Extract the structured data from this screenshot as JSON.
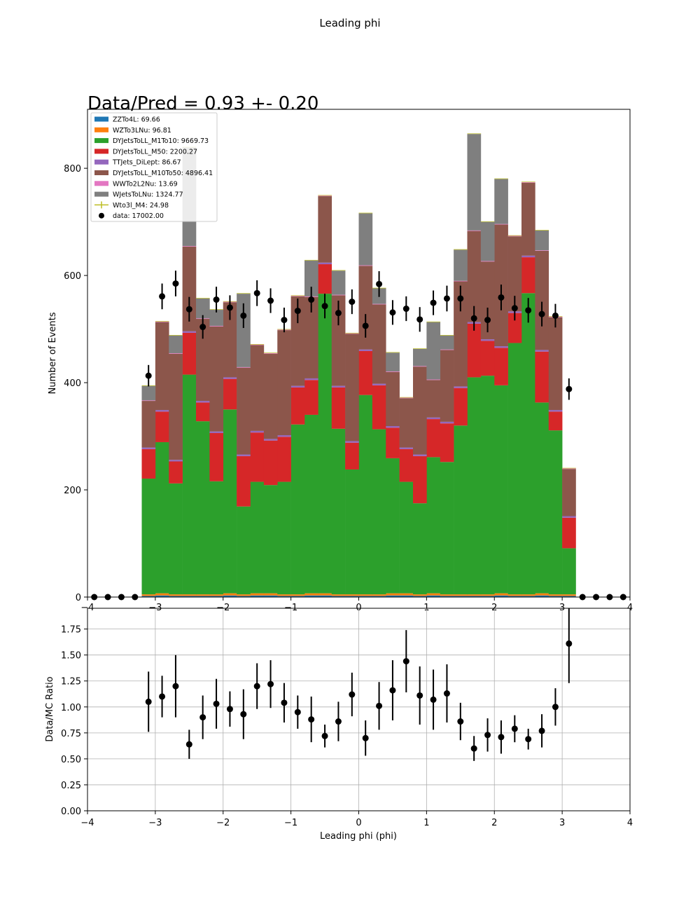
{
  "figure_title": "Leading phi",
  "annotation": "Data/Pred = 0.93 +- 0.20",
  "colors": {
    "ZZTo4L": "#1f77b4",
    "WZTo3LNu": "#ff7f0e",
    "DYJetsToLL_M1To10": "#2ca02c",
    "DYJetsToLL_M50": "#d62728",
    "TTJets_DiLept": "#9467bd",
    "DYJetsToLL_M10To50": "#8c564b",
    "WWTo2L2Nu": "#e377c2",
    "WJetsToLNu": "#7f7f7f",
    "Wto3l_M4": "#bcbd22",
    "data": "#000000"
  },
  "chart_data": [
    {
      "type": "bar",
      "stacked": true,
      "ylabel": "Number of Events",
      "xlim": [
        -4,
        4
      ],
      "ylim": [
        0,
        910
      ],
      "xticks": [
        "−4",
        "−3",
        "−2",
        "−1",
        "0",
        "1",
        "2",
        "3",
        "4"
      ],
      "yticks": [
        "0",
        "200",
        "400",
        "600",
        "800"
      ],
      "legend_position": "top-left",
      "legend": [
        "ZZTo4L: 69.66",
        "WZTo3LNu: 96.81",
        "DYJetsToLL_M1To10: 9669.73",
        "DYJetsToLL_M50: 2200.27",
        "TTJets_DiLept: 86.67",
        "DYJetsToLL_M10To50: 4896.41",
        "WWTo2L2Nu: 13.69",
        "WJetsToLNu: 1324.77",
        "Wto3l_M4: 24.98",
        "data: 17002.00"
      ],
      "bin_edges": [
        -4.0,
        -3.8,
        -3.6,
        -3.4,
        -3.2,
        -3.0,
        -2.8,
        -2.6,
        -2.4,
        -2.2,
        -2.0,
        -1.8,
        -1.6,
        -1.4,
        -1.2,
        -1.0,
        -0.8,
        -0.6,
        -0.4,
        -0.2,
        0.0,
        0.2,
        0.4,
        0.6,
        0.8,
        1.0,
        1.2,
        1.4,
        1.6,
        1.8,
        2.0,
        2.2,
        2.4,
        2.6,
        2.8,
        3.0,
        3.2,
        3.4,
        3.6,
        3.8,
        4.0
      ],
      "series": [
        {
          "key": "ZZTo4L",
          "values": [
            0,
            0,
            0,
            0,
            2,
            3,
            2,
            2,
            2,
            2,
            3,
            2,
            3,
            3,
            2,
            2,
            3,
            3,
            2,
            2,
            2,
            2,
            3,
            3,
            2,
            3,
            2,
            2,
            2,
            2,
            3,
            2,
            2,
            3,
            2,
            2,
            0,
            0,
            0,
            0
          ]
        },
        {
          "key": "WZTo3LNu",
          "values": [
            0,
            0,
            0,
            0,
            3,
            4,
            3,
            3,
            3,
            3,
            4,
            3,
            4,
            4,
            3,
            3,
            4,
            4,
            3,
            3,
            3,
            3,
            4,
            4,
            3,
            4,
            3,
            3,
            3,
            3,
            4,
            3,
            3,
            4,
            3,
            3,
            0,
            0,
            0,
            0
          ]
        },
        {
          "key": "DYJetsToLL_M1To10",
          "values": [
            0,
            0,
            0,
            0,
            216,
            282,
            207,
            410,
            323,
            211,
            343,
            164,
            208,
            202,
            210,
            317,
            333,
            559,
            309,
            233,
            372,
            308,
            252,
            208,
            170,
            254,
            247,
            315,
            405,
            408,
            388,
            469,
            562,
            356,
            306,
            86,
            0,
            0,
            0,
            0
          ]
        },
        {
          "key": "DYJetsToLL_M50",
          "values": [
            0,
            0,
            0,
            0,
            55,
            57,
            41,
            78,
            35,
            90,
            57,
            94,
            92,
            83,
            84,
            69,
            65,
            55,
            77,
            50,
            82,
            82,
            57,
            61,
            88,
            71,
            72,
            70,
            100,
            65,
            70,
            56,
            67,
            95,
            35,
            57,
            0,
            0,
            0,
            0
          ]
        },
        {
          "key": "TTJets_DiLept",
          "values": [
            0,
            0,
            0,
            0,
            3,
            3,
            3,
            3,
            3,
            3,
            3,
            3,
            3,
            3,
            3,
            3,
            3,
            3,
            3,
            3,
            3,
            3,
            3,
            3,
            3,
            3,
            3,
            3,
            3,
            3,
            3,
            3,
            3,
            3,
            3,
            3,
            0,
            0,
            0,
            0
          ]
        },
        {
          "key": "DYJetsToLL_M10To50",
          "values": [
            0,
            0,
            0,
            0,
            87,
            164,
            198,
            158,
            153,
            196,
            140,
            162,
            160,
            159,
            196,
            167,
            152,
            124,
            169,
            200,
            156,
            148,
            101,
            92,
            164,
            70,
            134,
            196,
            170,
            145,
            227,
            140,
            136,
            185,
            173,
            88,
            0,
            0,
            0,
            0
          ]
        },
        {
          "key": "WWTo2L2Nu",
          "values": [
            0,
            0,
            0,
            0,
            1,
            1,
            1,
            1,
            1,
            1,
            1,
            1,
            1,
            1,
            1,
            1,
            1,
            1,
            1,
            1,
            1,
            1,
            1,
            1,
            1,
            1,
            1,
            1,
            1,
            1,
            1,
            1,
            1,
            1,
            1,
            1,
            0,
            0,
            0,
            0
          ]
        },
        {
          "key": "WJetsToLNu",
          "values": [
            0,
            0,
            0,
            0,
            27,
            0,
            33,
            184,
            37,
            30,
            0,
            137,
            0,
            0,
            0,
            0,
            67,
            0,
            45,
            0,
            97,
            29,
            35,
            0,
            32,
            107,
            26,
            58,
            180,
            73,
            84,
            0,
            0,
            37,
            0,
            0,
            0,
            0,
            0,
            0
          ]
        },
        {
          "key": "Wto3l_M4",
          "values": [
            0,
            0,
            0,
            0,
            1,
            1,
            1,
            1,
            1,
            1,
            1,
            1,
            1,
            1,
            1,
            1,
            1,
            1,
            1,
            1,
            1,
            1,
            1,
            1,
            1,
            1,
            1,
            1,
            1,
            1,
            1,
            1,
            1,
            1,
            1,
            1,
            0,
            0,
            0,
            0
          ]
        }
      ],
      "data_points": {
        "values": [
          0,
          0,
          0,
          0,
          413,
          561,
          585,
          537,
          504,
          555,
          540,
          525,
          567,
          553,
          517,
          534,
          555,
          543,
          530,
          551,
          506,
          584,
          531,
          538,
          518,
          549,
          557,
          557,
          520,
          517,
          559,
          539,
          535,
          528,
          525,
          388,
          0,
          0,
          0,
          0
        ],
        "errors": [
          0,
          0,
          0,
          0,
          20,
          24,
          24,
          23,
          22,
          24,
          23,
          23,
          24,
          23,
          23,
          23,
          24,
          23,
          23,
          23,
          22,
          24,
          23,
          23,
          23,
          23,
          24,
          24,
          23,
          23,
          24,
          23,
          23,
          23,
          22,
          20,
          0,
          0,
          0,
          0
        ]
      }
    },
    {
      "type": "scatter",
      "xlabel": "Leading phi (phi)",
      "ylabel": "Data/MC Ratio",
      "xlim": [
        -4,
        4
      ],
      "ylim": [
        0,
        1.95
      ],
      "grid": true,
      "xticks": [
        "−4",
        "−3",
        "−2",
        "−1",
        "0",
        "1",
        "2",
        "3",
        "4"
      ],
      "yticks": [
        "0.00",
        "0.25",
        "0.50",
        "0.75",
        "1.00",
        "1.25",
        "1.50",
        "1.75"
      ],
      "x": [
        -3.1,
        -2.9,
        -2.7,
        -2.5,
        -2.3,
        -2.1,
        -1.9,
        -1.7,
        -1.5,
        -1.3,
        -1.1,
        -0.9,
        -0.7,
        -0.5,
        -0.3,
        -0.1,
        0.1,
        0.3,
        0.5,
        0.7,
        0.9,
        1.1,
        1.3,
        1.5,
        1.7,
        1.9,
        2.1,
        2.3,
        2.5,
        2.7,
        2.9,
        3.1
      ],
      "y": [
        1.05,
        1.1,
        1.2,
        0.64,
        0.9,
        1.03,
        0.98,
        0.93,
        1.2,
        1.22,
        1.04,
        0.95,
        0.88,
        0.72,
        0.86,
        1.12,
        0.7,
        1.01,
        1.16,
        1.44,
        1.11,
        1.07,
        1.13,
        0.86,
        0.6,
        0.73,
        0.71,
        0.79,
        0.69,
        0.77,
        1.0,
        1.61
      ],
      "yerr": [
        0.29,
        0.2,
        0.3,
        0.14,
        0.21,
        0.24,
        0.17,
        0.24,
        0.22,
        0.23,
        0.19,
        0.16,
        0.22,
        0.11,
        0.19,
        0.21,
        0.17,
        0.23,
        0.29,
        0.3,
        0.28,
        0.29,
        0.28,
        0.18,
        0.12,
        0.16,
        0.16,
        0.13,
        0.1,
        0.16,
        0.18,
        0.38
      ]
    }
  ]
}
